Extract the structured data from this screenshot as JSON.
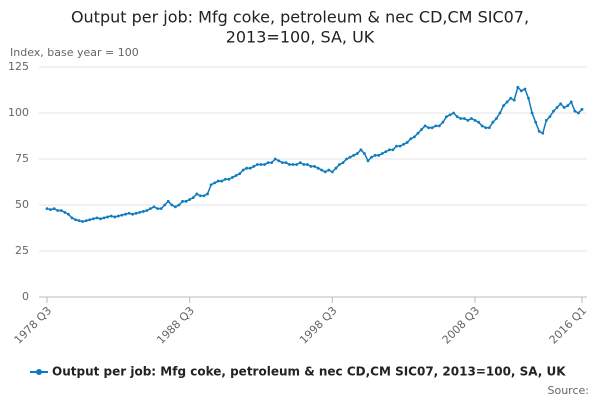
{
  "chart_data": {
    "type": "line",
    "title": [
      "Output per job: Mfg coke, petroleum & nec CD,CM SIC07,",
      "2013=100, SA, UK"
    ],
    "y_label": "Index, base year = 100",
    "source": "Source:",
    "categories": [
      "1978 Q3",
      null,
      null,
      null,
      null,
      null,
      null,
      null,
      null,
      null,
      null,
      null,
      null,
      null,
      null,
      null,
      null,
      null,
      null,
      null,
      null,
      null,
      null,
      null,
      null,
      null,
      null,
      null,
      null,
      null,
      null,
      null,
      null,
      null,
      null,
      null,
      null,
      null,
      null,
      null,
      "1988 Q3",
      null,
      null,
      null,
      null,
      null,
      null,
      null,
      null,
      null,
      null,
      null,
      null,
      null,
      null,
      null,
      null,
      null,
      null,
      null,
      null,
      null,
      null,
      null,
      null,
      null,
      null,
      null,
      null,
      null,
      null,
      null,
      null,
      null,
      null,
      null,
      null,
      null,
      null,
      null,
      "1998 Q3",
      null,
      null,
      null,
      null,
      null,
      null,
      null,
      null,
      null,
      null,
      null,
      null,
      null,
      null,
      null,
      null,
      null,
      null,
      null,
      null,
      null,
      null,
      null,
      null,
      null,
      null,
      null,
      null,
      null,
      null,
      null,
      null,
      null,
      null,
      null,
      null,
      null,
      null,
      null,
      "2008 Q3",
      null,
      null,
      null,
      null,
      null,
      null,
      null,
      null,
      null,
      null,
      null,
      null,
      null,
      null,
      null,
      null,
      null,
      null,
      null,
      null,
      null,
      null,
      null,
      null,
      null,
      null,
      null,
      null,
      null,
      "2016 Q1"
    ],
    "series": [
      {
        "name": "Output per job: Mfg coke, petroleum & nec CD,CM SIC07, 2013=100, SA, UK",
        "color": "#0f7bbf",
        "values": [
          48,
          47.5,
          48,
          47,
          47,
          46,
          45,
          43,
          42,
          41.5,
          41,
          41.5,
          42,
          42.5,
          43,
          42.5,
          43,
          43.5,
          44,
          43.5,
          44,
          44.5,
          45,
          45.5,
          45,
          45.5,
          46,
          46.5,
          47,
          48,
          49,
          48,
          48,
          50,
          52,
          50,
          49,
          50,
          52,
          52,
          53,
          54,
          56,
          55,
          55,
          56,
          61,
          62,
          63,
          63,
          64,
          64,
          65,
          66,
          67,
          69,
          70,
          70,
          71,
          72,
          72,
          72,
          73,
          73,
          75,
          74,
          73,
          73,
          72,
          72,
          72,
          73,
          72,
          72,
          71,
          71,
          70,
          69,
          68,
          69,
          68,
          70,
          72,
          73,
          75,
          76,
          77,
          78,
          80,
          78,
          74,
          76,
          77,
          77,
          78,
          79,
          80,
          80,
          82,
          82,
          83,
          84,
          86,
          87,
          89,
          91,
          93,
          92,
          92,
          93,
          93,
          95,
          98,
          99,
          100,
          98,
          97,
          97,
          96,
          97,
          96,
          95,
          93,
          92,
          92,
          95,
          97,
          100,
          104,
          106,
          108,
          107,
          114,
          112,
          113,
          108,
          100,
          95,
          90,
          89,
          96,
          98,
          101,
          103,
          105,
          103,
          104,
          106,
          101,
          100,
          102
        ]
      }
    ],
    "ylim": [
      0,
      125
    ],
    "yticks": [
      0,
      25,
      50,
      75,
      100,
      125
    ],
    "grid": true
  }
}
